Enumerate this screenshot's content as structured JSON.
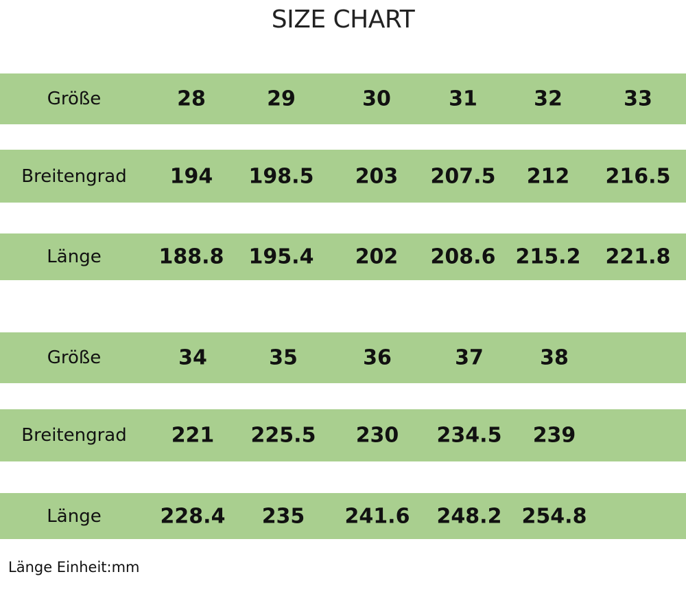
{
  "title": "SIZE CHART",
  "tables": [
    {
      "rows": [
        {
          "label": "Größe",
          "values": [
            28,
            29,
            30,
            31,
            32,
            33
          ]
        },
        {
          "label": "Breitengrad",
          "values": [
            194,
            198.5,
            203,
            207.5,
            212,
            216.5
          ]
        },
        {
          "label": "Länge",
          "values": [
            188.8,
            195.4,
            202,
            208.6,
            215.2,
            221.8
          ]
        }
      ]
    },
    {
      "rows": [
        {
          "label": "Größe",
          "values": [
            34,
            35,
            36,
            37,
            38
          ]
        },
        {
          "label": "Breitengrad",
          "values": [
            221,
            225.5,
            230,
            234.5,
            239
          ]
        },
        {
          "label": "Länge",
          "values": [
            228.4,
            235,
            241.6,
            248.2,
            254.8
          ]
        }
      ]
    }
  ],
  "note": "Länge Einheit:mm"
}
